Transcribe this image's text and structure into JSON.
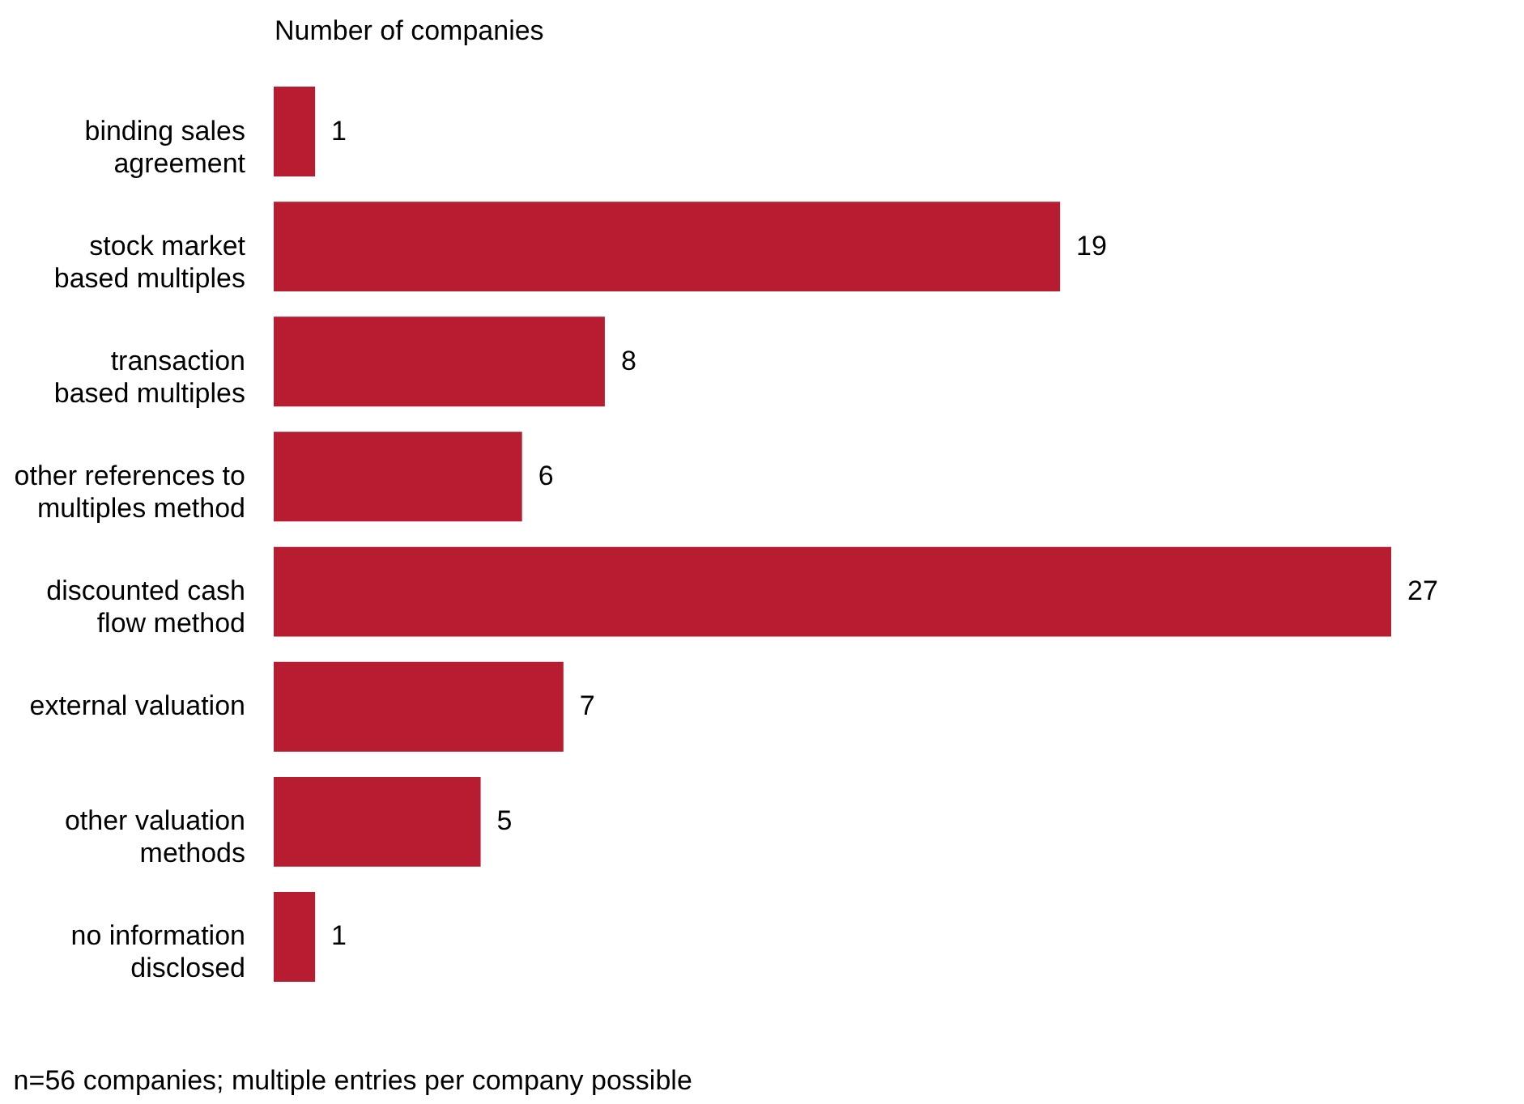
{
  "chart_data": {
    "type": "bar",
    "orientation": "horizontal",
    "xlabel": "Number of companies",
    "categories": [
      "binding sales agreement",
      "stock market based multiples",
      "transaction based multiples",
      "other references to multiples method",
      "discounted cash flow method",
      "external valuation",
      "other valuation methods",
      "no information disclosed"
    ],
    "values": [
      1,
      19,
      8,
      6,
      27,
      7,
      5,
      1
    ],
    "color": "#b81c30",
    "data_labels": true,
    "tick_labels": "y",
    "grid": false,
    "annotations": [
      "n=56 companies; multiple entries per company possible"
    ]
  }
}
